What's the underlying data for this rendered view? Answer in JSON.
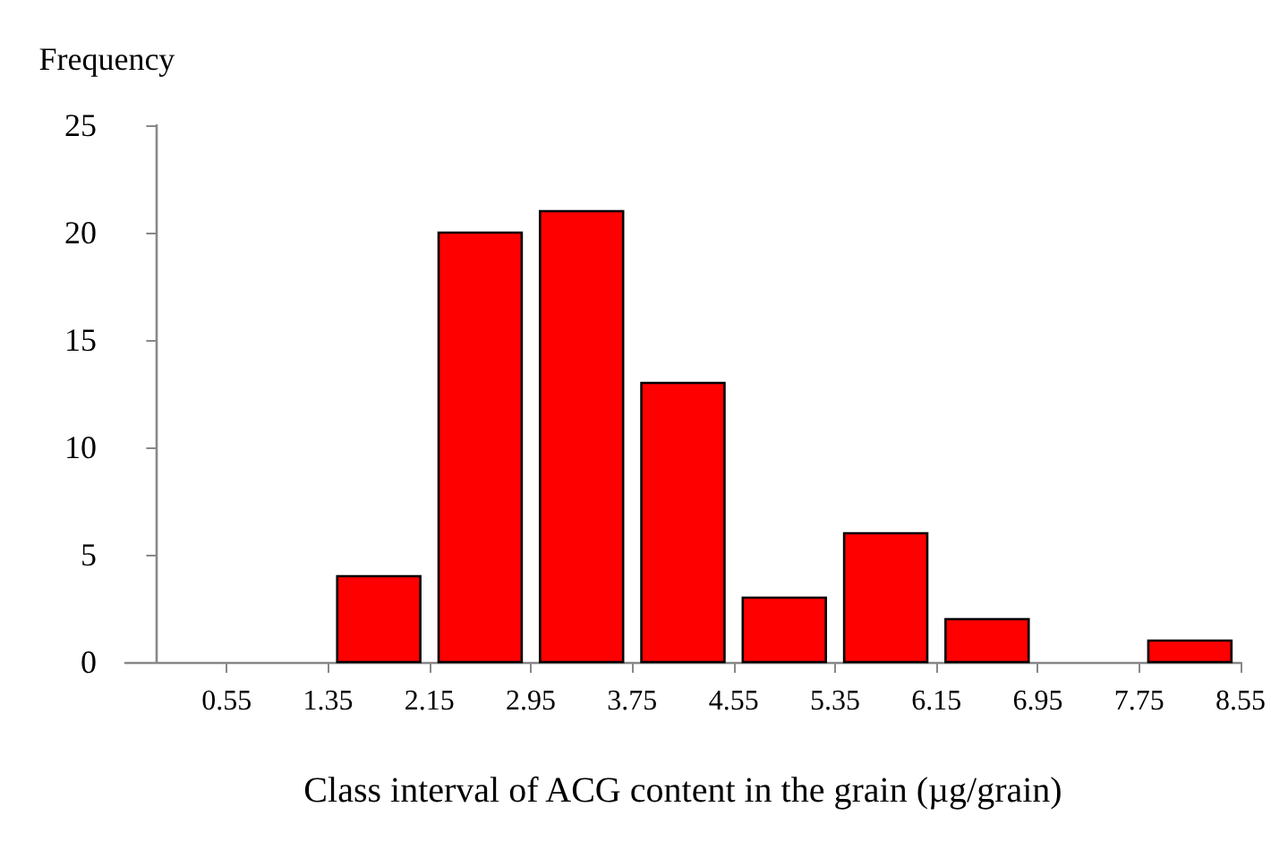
{
  "chart_data": {
    "type": "histogram",
    "xlabel": "Class interval of ACG content in the grain (µg/grain)",
    "ylabel": "Frequency",
    "bins": [
      0.55,
      1.35,
      2.15,
      2.95,
      3.75,
      4.55,
      5.35,
      6.15,
      6.95,
      7.75,
      8.55
    ],
    "values": [
      0,
      4,
      20,
      21,
      13,
      3,
      6,
      2,
      0,
      1
    ],
    "color": "#ff0000",
    "xlim": [
      -0.25,
      8.55
    ],
    "xticks": [
      0.55,
      1.35,
      2.15,
      2.95,
      3.75,
      4.55,
      5.35,
      6.15,
      6.95,
      7.75,
      8.55
    ],
    "ylim": [
      0,
      25
    ],
    "yticks": [
      0,
      5,
      10,
      15,
      20,
      25
    ],
    "grid": false
  }
}
